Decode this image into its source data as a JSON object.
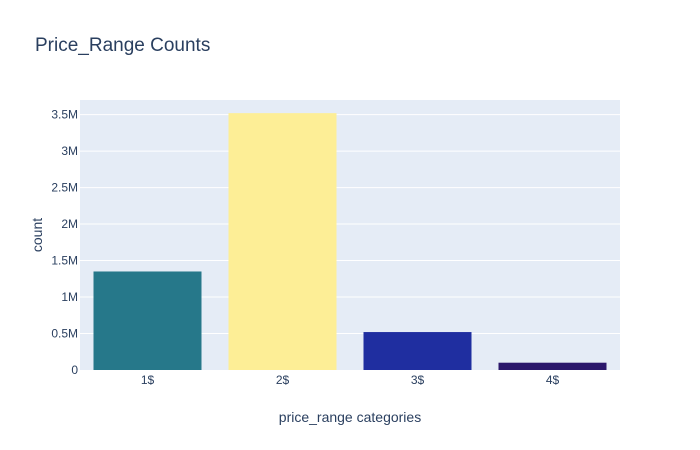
{
  "chart_data": {
    "type": "bar",
    "title": "Price_Range Counts",
    "xlabel": "price_range categories",
    "ylabel": "count",
    "categories": [
      "1$",
      "2$",
      "3$",
      "4$"
    ],
    "values": [
      1350000,
      3520000,
      520000,
      100000
    ],
    "colors": [
      "#26788a",
      "#fdee96",
      "#1f2ea0",
      "#2b176b"
    ],
    "ylim": [
      0,
      3700000
    ],
    "yticks": [
      0,
      500000,
      1000000,
      1500000,
      2000000,
      2500000,
      3000000,
      3500000
    ],
    "ytick_labels": [
      "0",
      "0.5M",
      "1M",
      "1.5M",
      "2M",
      "2.5M",
      "3M",
      "3.5M"
    ],
    "grid": true,
    "plot_bgcolor": "#e5ecf6",
    "legend": "none"
  }
}
